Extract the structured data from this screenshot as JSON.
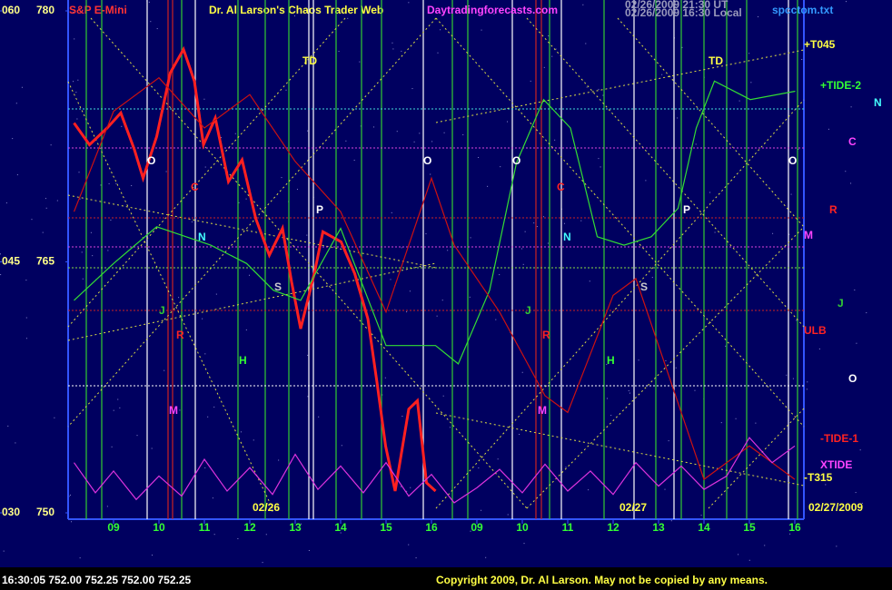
{
  "chart_data": {
    "type": "line",
    "title": "S&P E-Mini",
    "subtitle": "Dr. Al Larson's Chaos Trader Web",
    "xlim": [
      0,
      16.2
    ],
    "xticks": [
      {
        "value": 1,
        "label": "09"
      },
      {
        "value": 2,
        "label": "10"
      },
      {
        "value": 3,
        "label": "11"
      },
      {
        "value": 4,
        "label": "12"
      },
      {
        "value": 5,
        "label": "13"
      },
      {
        "value": 6,
        "label": "14"
      },
      {
        "value": 7,
        "label": "15"
      },
      {
        "value": 8,
        "label": "16"
      },
      {
        "value": 9,
        "label": "09"
      },
      {
        "value": 10,
        "label": "10"
      },
      {
        "value": 11,
        "label": "11"
      },
      {
        "value": 12,
        "label": "12"
      },
      {
        "value": 13,
        "label": "13"
      },
      {
        "value": 14,
        "label": "14"
      },
      {
        "value": 15,
        "label": "15"
      },
      {
        "value": 16,
        "label": "16"
      }
    ],
    "ylim": [
      750,
      780
    ],
    "yticks": [
      750,
      765,
      780
    ],
    "y2lim": [
      30,
      60
    ],
    "y2ticks": [
      {
        "value": 30,
        "label": "030"
      },
      {
        "value": 45,
        "label": "045"
      },
      {
        "value": 60,
        "label": "060"
      }
    ],
    "series": [
      {
        "color": "#ff2020",
        "x": [
          0.13,
          0.47,
          0.86,
          1.16,
          1.46,
          1.65,
          1.95,
          2.25,
          2.54,
          2.78,
          2.98,
          3.24,
          3.53,
          3.83,
          4.13,
          4.43,
          4.72,
          4.92,
          5.12,
          5.42,
          5.61,
          6.01,
          6.31,
          6.6,
          6.8,
          6.99,
          7.2,
          7.5,
          7.69,
          7.89,
          8.09
        ],
        "values": [
          773.3,
          772,
          773,
          773.9,
          771.7,
          770,
          772.5,
          776.3,
          777.7,
          775.8,
          772,
          773.6,
          769.8,
          771.1,
          767.6,
          765.4,
          767,
          763.8,
          761,
          764.3,
          766.8,
          766.2,
          764.3,
          761.6,
          757.8,
          754,
          751.3,
          756.2,
          756.7,
          751.8,
          751.3
        ]
      },
      {
        "color": "#33dd33",
        "x": [
          0.13,
          1,
          1.95,
          3.14,
          3.93,
          4.52,
          5.12,
          6,
          7,
          8.09,
          8.59,
          9.28,
          9.87,
          10.47,
          11.06,
          11.65,
          12.24,
          12.84,
          13.43,
          13.83,
          14.23,
          15.02,
          16.01
        ],
        "values": [
          762.7,
          764.9,
          767.1,
          766,
          764.9,
          763.3,
          762.7,
          767,
          760,
          760,
          758.9,
          763.3,
          770.9,
          774.7,
          773,
          766.5,
          766,
          766.5,
          768.2,
          773,
          775.8,
          774.7,
          775.2
        ]
      },
      {
        "color": "#cc1111",
        "x": [
          0.13,
          1,
          2,
          3,
          4,
          5,
          6,
          7,
          8,
          8.5,
          9.5,
          10.5,
          11,
          12,
          12.5,
          13,
          14,
          15,
          16
        ],
        "values": [
          768,
          774,
          776,
          773,
          775,
          771,
          768,
          762,
          770,
          766,
          762,
          757,
          756,
          763,
          764,
          760,
          752,
          754,
          752
        ]
      },
      {
        "color": "#dd33dd",
        "x": [
          0.13,
          0.6,
          1,
          1.5,
          2,
          2.5,
          3,
          3.5,
          4,
          4.5,
          5,
          5.5,
          6,
          6.5,
          7,
          7.5,
          8,
          8.5,
          9,
          9.5,
          10,
          10.5,
          11,
          11.5,
          12,
          12.5,
          13,
          13.5,
          14,
          14.5,
          15,
          15.5,
          16
        ],
        "values": [
          753,
          751.2,
          752.5,
          750.8,
          752.2,
          751,
          753.2,
          751.3,
          752.7,
          751.1,
          753.5,
          751.4,
          752.8,
          751.2,
          753,
          751,
          752.3,
          750.6,
          751.5,
          752.6,
          751.2,
          752.9,
          751.3,
          752.5,
          751.1,
          753,
          751.6,
          752.8,
          751.4,
          752.2,
          754.5,
          753,
          754
        ]
      }
    ],
    "annotations": [
      "Daytradingforecasts.com",
      "spcctom.txt",
      "02/26/2009 21:30 UT",
      "02/26/2009 16:30 Local",
      "+T045",
      "+TIDE-2",
      "N",
      "C",
      "R",
      "M",
      "J",
      "ULB",
      "O",
      "-TIDE-1",
      "XTIDE",
      "-T315",
      "02/26",
      "02/27",
      "02/27/2009",
      "16:30:05  752.00 752.25 752.00 752.25",
      "Copyright 2009, Dr. Al Larson. May not be copied by any means.",
      "TD",
      "TD",
      "O",
      "O",
      "O",
      "O",
      "C",
      "C",
      "N",
      "N",
      "P",
      "P",
      "S",
      "S",
      "J",
      "J",
      "R",
      "R",
      "H",
      "H",
      "M",
      "M"
    ]
  }
}
